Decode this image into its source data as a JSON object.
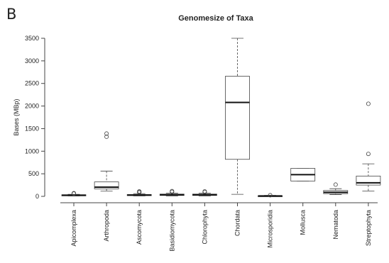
{
  "panel_label": "B",
  "chart_data": {
    "type": "boxplot",
    "title": "Genomesize of Taxa",
    "xlabel": "",
    "ylabel": "Bases (MBp)",
    "ylim": [
      0,
      3500
    ],
    "yticks": [
      0,
      500,
      1000,
      1500,
      2000,
      2500,
      3000,
      3500
    ],
    "grid": false,
    "categories": [
      "Apicomplexa",
      "Arthropoda",
      "Ascomycota",
      "Basidiomycota",
      "Chlorophyta",
      "Chordata",
      "Microsporidia",
      "Mollusca",
      "Nematoda",
      "Streptophyta"
    ],
    "boxes": [
      {
        "whisker_low": 10,
        "q1": 18,
        "median": 25,
        "q3": 35,
        "whisker_high": 45,
        "outliers": [
          60,
          70
        ]
      },
      {
        "whisker_low": 120,
        "q1": 165,
        "median": 205,
        "q3": 320,
        "whisker_high": 560,
        "outliers": [
          1320,
          1390
        ]
      },
      {
        "whisker_low": 10,
        "q1": 20,
        "median": 30,
        "q3": 40,
        "whisker_high": 60,
        "outliers": [
          85,
          100,
          110
        ]
      },
      {
        "whisker_low": 10,
        "q1": 20,
        "median": 35,
        "q3": 50,
        "whisker_high": 70,
        "outliers": [
          100,
          115
        ]
      },
      {
        "whisker_low": 10,
        "q1": 20,
        "median": 35,
        "q3": 50,
        "whisker_high": 70,
        "outliers": [
          95,
          110
        ]
      },
      {
        "whisker_low": 45,
        "q1": 820,
        "median": 2080,
        "q3": 2660,
        "whisker_high": 3500,
        "outliers": []
      },
      {
        "whisker_low": 2,
        "q1": 5,
        "median": 10,
        "q3": 15,
        "whisker_high": 22,
        "outliers": [
          25
        ]
      },
      {
        "whisker_low": 340,
        "q1": 340,
        "median": 480,
        "q3": 620,
        "whisker_high": 620,
        "outliers": []
      },
      {
        "whisker_low": 40,
        "q1": 60,
        "median": 90,
        "q3": 130,
        "whisker_high": 170,
        "outliers": [
          260
        ]
      },
      {
        "whisker_low": 120,
        "q1": 250,
        "median": 300,
        "q3": 450,
        "whisker_high": 720,
        "outliers": [
          940,
          2050
        ]
      }
    ]
  }
}
